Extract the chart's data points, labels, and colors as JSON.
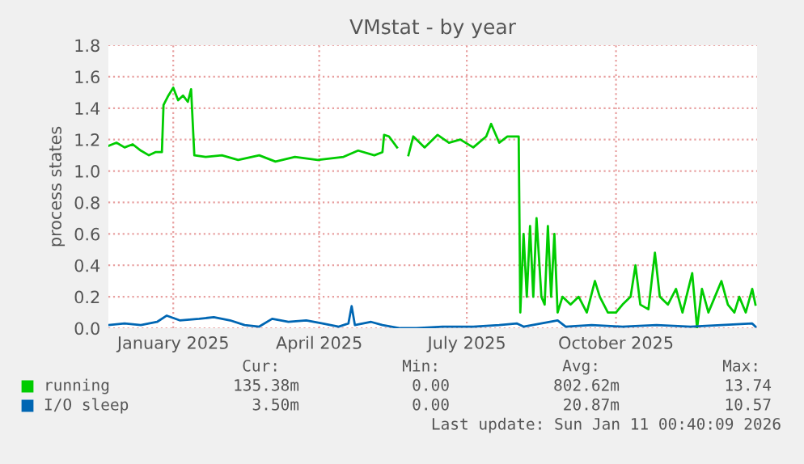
{
  "chart_data": {
    "type": "line",
    "title": "VMstat - by year",
    "ylabel": "process states",
    "xlim": [
      "2024-12-07",
      "2026-01-11"
    ],
    "xticks": [
      {
        "value": "2025-01-16",
        "label": "January 2025"
      },
      {
        "value": "2025-04-16",
        "label": "April 2025"
      },
      {
        "value": "2025-07-16",
        "label": "July 2025"
      },
      {
        "value": "2025-10-16",
        "label": "October 2025"
      }
    ],
    "ylim": [
      0,
      1.8
    ],
    "yticks": [
      {
        "value": 0,
        "label": "0.0"
      },
      0.2,
      0.4,
      0.6,
      0.8,
      {
        "value": 1,
        "label": "1.0"
      },
      1.2,
      1.4,
      1.6,
      1.8
    ],
    "grid": true,
    "legend": "bottom",
    "series": [
      {
        "name": "running",
        "color": "#00cc00",
        "x": [
          "2024-12-07",
          "2024-12-12",
          "2024-12-17",
          "2024-12-22",
          "2024-12-27",
          "2025-01-01",
          "2025-01-05",
          "2025-01-09",
          "2025-01-10",
          "2025-01-13",
          "2025-01-16",
          "2025-01-19",
          "2025-01-22",
          "2025-01-25",
          "2025-01-27",
          "2025-01-29",
          "2025-02-05",
          "2025-02-15",
          "2025-02-25",
          "2025-03-10",
          "2025-03-20",
          "2025-04-01",
          "2025-04-15",
          "2025-05-01",
          "2025-05-10",
          "2025-05-20",
          "2025-05-25",
          "2025-05-26",
          "2025-05-29",
          "2025-06-03",
          "2025-06-05",
          "2025-06-10",
          "2025-06-13",
          "2025-06-20",
          "2025-06-28",
          "2025-07-05",
          "2025-07-12",
          "2025-07-20",
          "2025-07-28",
          "2025-07-31",
          "2025-08-05",
          "2025-08-10",
          "2025-08-17",
          "2025-08-18",
          "2025-08-20",
          "2025-08-22",
          "2025-08-24",
          "2025-08-26",
          "2025-08-28",
          "2025-08-31",
          "2025-09-02",
          "2025-09-04",
          "2025-09-06",
          "2025-09-08",
          "2025-09-10",
          "2025-09-13",
          "2025-09-18",
          "2025-09-23",
          "2025-09-28",
          "2025-10-03",
          "2025-10-06",
          "2025-10-11",
          "2025-10-16",
          "2025-10-20",
          "2025-10-25",
          "2025-10-28",
          "2025-10-31",
          "2025-11-05",
          "2025-11-09",
          "2025-11-12",
          "2025-11-17",
          "2025-11-22",
          "2025-11-26",
          "2025-12-02",
          "2025-12-05",
          "2025-12-08",
          "2025-12-12",
          "2025-12-16",
          "2025-12-20",
          "2025-12-24",
          "2025-12-28",
          "2025-12-31",
          "2026-01-04",
          "2026-01-08",
          "2026-01-10"
        ],
        "values": [
          1.16,
          1.18,
          1.15,
          1.17,
          1.13,
          1.1,
          1.12,
          1.12,
          1.42,
          1.48,
          1.53,
          1.45,
          1.48,
          1.44,
          1.52,
          1.1,
          1.09,
          1.1,
          1.07,
          1.1,
          1.06,
          1.09,
          1.07,
          1.09,
          1.13,
          1.1,
          1.12,
          1.23,
          1.22,
          1.15,
          null,
          1.1,
          1.22,
          1.15,
          1.23,
          1.18,
          1.2,
          1.15,
          1.22,
          1.3,
          1.18,
          1.22,
          1.22,
          0.1,
          0.6,
          0.2,
          0.65,
          0.2,
          0.7,
          0.2,
          0.15,
          0.65,
          0.2,
          0.6,
          0.1,
          0.2,
          0.15,
          0.2,
          0.1,
          0.3,
          0.2,
          0.1,
          0.1,
          0.15,
          0.2,
          0.4,
          0.15,
          0.12,
          0.48,
          0.2,
          0.15,
          0.25,
          0.1,
          0.35,
          0.0,
          0.25,
          0.1,
          0.2,
          0.3,
          0.15,
          0.1,
          0.2,
          0.1,
          0.25,
          0.15
        ]
      },
      {
        "name": "I/O sleep",
        "color": "#0066b3",
        "x": [
          "2024-12-07",
          "2024-12-17",
          "2024-12-27",
          "2025-01-06",
          "2025-01-12",
          "2025-01-20",
          "2025-02-01",
          "2025-02-10",
          "2025-02-20",
          "2025-03-01",
          "2025-03-10",
          "2025-03-18",
          "2025-03-28",
          "2025-04-08",
          "2025-04-18",
          "2025-04-28",
          "2025-05-04",
          "2025-05-06",
          "2025-05-08",
          "2025-05-18",
          "2025-05-25",
          "2025-06-05",
          "2025-06-15",
          "2025-07-01",
          "2025-07-20",
          "2025-08-05",
          "2025-08-16",
          "2025-08-20",
          "2025-09-10",
          "2025-09-15",
          "2025-10-01",
          "2025-10-20",
          "2025-11-10",
          "2025-12-01",
          "2025-12-20",
          "2026-01-08",
          "2026-01-10"
        ],
        "values": [
          0.02,
          0.03,
          0.02,
          0.04,
          0.08,
          0.05,
          0.06,
          0.07,
          0.05,
          0.02,
          0.01,
          0.06,
          0.04,
          0.05,
          0.03,
          0.01,
          0.03,
          0.14,
          0.02,
          0.04,
          0.02,
          0.0,
          0.0,
          0.01,
          0.01,
          0.02,
          0.03,
          0.01,
          0.05,
          0.01,
          0.02,
          0.01,
          0.02,
          0.01,
          0.02,
          0.03,
          0.01
        ]
      }
    ],
    "annotations": [
      "Cur:",
      "Min:",
      "Avg:",
      "Max:",
      "135.38m",
      "0.00",
      "802.62m",
      "13.74",
      "3.50m",
      "0.00",
      "20.87m",
      "10.57",
      "Last update: Sun Jan 11 00:40:09 2026"
    ]
  }
}
